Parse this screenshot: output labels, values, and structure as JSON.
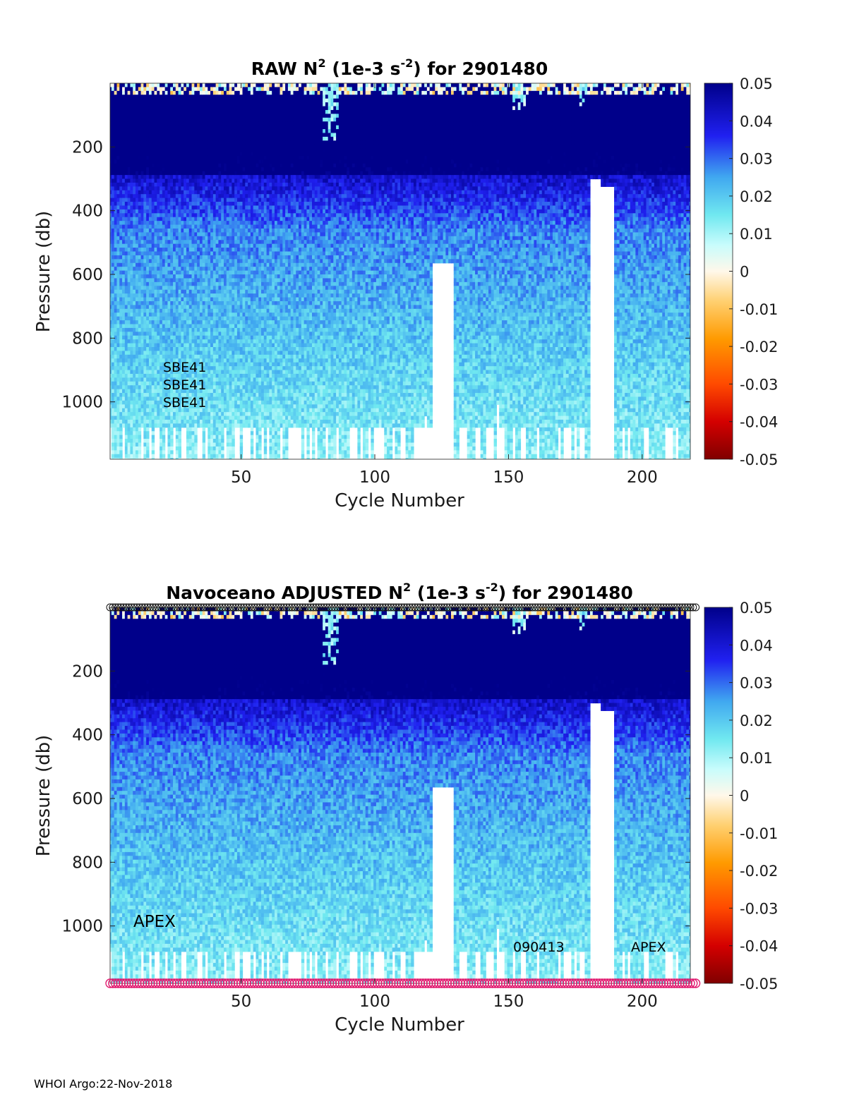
{
  "chart_data": [
    {
      "type": "heatmap",
      "title": "RAW N2 (1e-3 s-2) for 2901480",
      "title_parts": {
        "a": "RAW N",
        "sup1": "2",
        "b": " (1e-3 s",
        "sup2": "-2",
        "c": ") for 2901480"
      },
      "xlabel": "Cycle Number",
      "ylabel": "Pressure (db)",
      "xlim": [
        1,
        218
      ],
      "ylim": [
        1180,
        0
      ],
      "xticks": [
        50,
        100,
        150,
        200
      ],
      "yticks": [
        200,
        400,
        600,
        800,
        1000
      ],
      "colorbar": {
        "min": -0.05,
        "max": 0.05,
        "ticks": [
          "0.05",
          "0.04",
          "0.03",
          "0.02",
          "0.01",
          "0",
          "-0.01",
          "-0.02",
          "-0.03",
          "-0.04",
          "-0.05"
        ]
      },
      "missing_cycles": [
        [
          119,
          130
        ],
        [
          180,
          190
        ]
      ],
      "annotations": [
        "SBE41",
        "SBE41",
        "SBE41"
      ]
    },
    {
      "type": "heatmap",
      "title": "Navoceano  ADJUSTED N2 (1e-3 s-2) for 2901480",
      "title_parts": {
        "a": "Navoceano  ADJUSTED N",
        "sup1": "2",
        "b": " (1e-3 s",
        "sup2": "-2",
        "c": ") for 2901480"
      },
      "xlabel": "Cycle Number",
      "ylabel": "Pressure (db)",
      "xlim": [
        1,
        218
      ],
      "ylim": [
        1180,
        0
      ],
      "xticks": [
        50,
        100,
        150,
        200
      ],
      "yticks": [
        200,
        400,
        600,
        800,
        1000
      ],
      "colorbar": {
        "min": -0.05,
        "max": 0.05,
        "ticks": [
          "0.05",
          "0.04",
          "0.03",
          "0.02",
          "0.01",
          "0",
          "-0.01",
          "-0.02",
          "-0.03",
          "-0.04",
          "-0.05"
        ]
      },
      "missing_cycles": [
        [
          119,
          130
        ],
        [
          180,
          190
        ]
      ],
      "annotations": [
        "APEX",
        "090413",
        "APEX"
      ]
    }
  ],
  "footer": "WHOI Argo:22-Nov-2018"
}
